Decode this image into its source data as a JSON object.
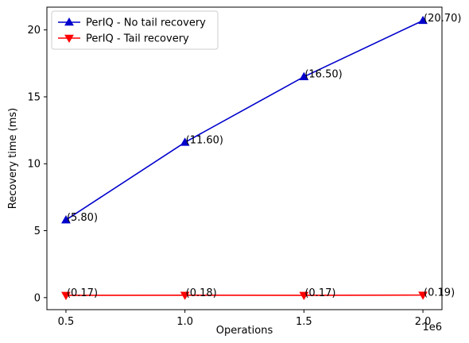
{
  "chart_data": {
    "type": "line",
    "xlabel": "Operations",
    "ylabel": "Recovery time (ms)",
    "x_scale_label": "1e6",
    "x": [
      0.5,
      1.0,
      1.5,
      2.0
    ],
    "x_tick_labels": [
      "0.5",
      "1.0",
      "1.5",
      "2.0"
    ],
    "y_ticks": [
      0,
      5,
      10,
      15,
      20
    ],
    "xlim": [
      0.42,
      2.08
    ],
    "ylim": [
      -0.9,
      21.7
    ],
    "grid": false,
    "legend_position": "top-left",
    "series": [
      {
        "name": "PerIQ - No tail recovery",
        "color": "#0000cc",
        "marker": "triangle-up",
        "values": [
          5.8,
          11.6,
          16.5,
          20.7
        ],
        "labels": [
          "(5.80)",
          "(11.60)",
          "(16.50)",
          "(20.70)"
        ]
      },
      {
        "name": "PerIQ - Tail recovery",
        "color": "#ff0000",
        "marker": "triangle-down",
        "values": [
          0.17,
          0.18,
          0.17,
          0.19
        ],
        "labels": [
          "(0.17)",
          "(0.18)",
          "(0.17)",
          "(0.19)"
        ]
      }
    ]
  }
}
